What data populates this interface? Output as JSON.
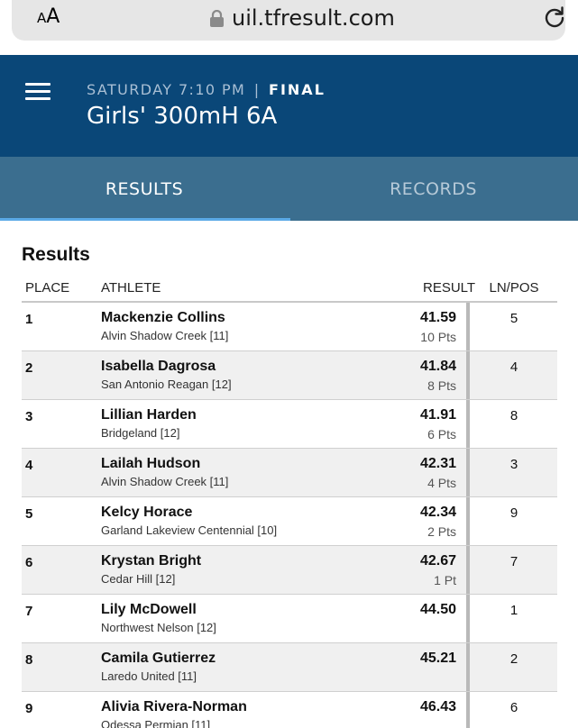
{
  "browser": {
    "text_size_label": "AA",
    "url": "uil.tfresult.com"
  },
  "header": {
    "day_time": "SATURDAY 7:10 PM",
    "separator": "|",
    "status": "FINAL",
    "event_title": "Girls' 300mH 6A"
  },
  "tabs": [
    {
      "label": "RESULTS",
      "active": true
    },
    {
      "label": "RECORDS",
      "active": false
    }
  ],
  "section_title": "Results",
  "columns": {
    "place": "PLACE",
    "athlete": "ATHLETE",
    "result": "RESULT",
    "lnpos": "LN/POS"
  },
  "rows": [
    {
      "place": "1",
      "name": "Mackenzie Collins",
      "team": "Alvin Shadow Creek [11]",
      "time": "41.59",
      "pts": "10 Pts",
      "lane": "5"
    },
    {
      "place": "2",
      "name": "Isabella Dagrosa",
      "team": "San Antonio Reagan [12]",
      "time": "41.84",
      "pts": "8 Pts",
      "lane": "4"
    },
    {
      "place": "3",
      "name": "Lillian Harden",
      "team": "Bridgeland [12]",
      "time": "41.91",
      "pts": "6 Pts",
      "lane": "8"
    },
    {
      "place": "4",
      "name": "Lailah Hudson",
      "team": "Alvin Shadow Creek [11]",
      "time": "42.31",
      "pts": "4 Pts",
      "lane": "3"
    },
    {
      "place": "5",
      "name": "Kelcy Horace",
      "team": "Garland Lakeview Centennial [10]",
      "time": "42.34",
      "pts": "2 Pts",
      "lane": "9"
    },
    {
      "place": "6",
      "name": "Krystan Bright",
      "team": "Cedar Hill [12]",
      "time": "42.67",
      "pts": "1 Pt",
      "lane": "7"
    },
    {
      "place": "7",
      "name": "Lily McDowell",
      "team": "Northwest Nelson [12]",
      "time": "44.50",
      "pts": "",
      "lane": "1"
    },
    {
      "place": "8",
      "name": "Camila Gutierrez",
      "team": "Laredo United [11]",
      "time": "45.21",
      "pts": "",
      "lane": "2"
    },
    {
      "place": "9",
      "name": "Alivia Rivera-Norman",
      "team": "Odessa Permian [11]",
      "time": "46.43",
      "pts": "",
      "lane": "6"
    }
  ],
  "colors": {
    "header_bg": "#0a4778",
    "tabs_bg": "#3b6e8f",
    "tab_indicator": "#5aa9e6"
  },
  "icons": {
    "menu": "hamburger-menu-icon",
    "lock": "lock-icon",
    "reload": "reload-icon"
  }
}
